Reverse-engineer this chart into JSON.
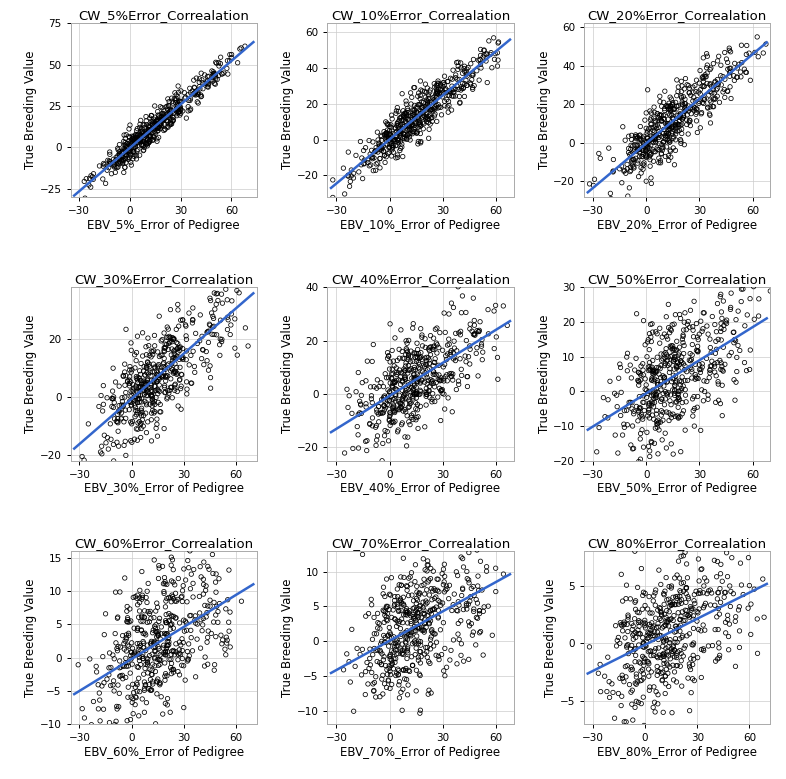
{
  "panels": [
    {
      "title": "CW_5%Error_Correalation",
      "xlabel": "EBV_5%_Error of Pedigree",
      "ylim": [
        -30,
        75
      ],
      "xlim": [
        -35,
        75
      ],
      "slope": 0.88,
      "noise": 5.0,
      "yticks": [
        -25,
        0,
        25,
        50,
        75
      ],
      "xticks": [
        -30,
        0,
        30,
        60
      ]
    },
    {
      "title": "CW_10%Error_Correalation",
      "xlabel": "EBV_10%_Error of Pedigree",
      "ylim": [
        -32,
        65
      ],
      "xlim": [
        -35,
        70
      ],
      "slope": 0.82,
      "noise": 6.5,
      "yticks": [
        -20,
        0,
        20,
        40,
        60
      ],
      "xticks": [
        -30,
        0,
        30,
        60
      ]
    },
    {
      "title": "CW_20%Error_Correalation",
      "xlabel": "EBV_20%_Error of Pedigree",
      "ylim": [
        -28,
        62
      ],
      "xlim": [
        -35,
        70
      ],
      "slope": 0.78,
      "noise": 8.0,
      "yticks": [
        -20,
        0,
        20,
        40,
        60
      ],
      "xticks": [
        -30,
        0,
        30,
        60
      ]
    },
    {
      "title": "CW_30%Error_Correalation",
      "xlabel": "EBV_30%_Error of Pedigree",
      "ylim": [
        -22,
        38
      ],
      "xlim": [
        -35,
        72
      ],
      "slope": 0.5,
      "noise": 8.5,
      "yticks": [
        -20,
        0,
        20
      ],
      "xticks": [
        -30,
        0,
        30,
        60
      ]
    },
    {
      "title": "CW_40%Error_Correalation",
      "xlabel": "EBV_40%_Error of Pedigree",
      "ylim": [
        -25,
        40
      ],
      "xlim": [
        -35,
        70
      ],
      "slope": 0.4,
      "noise": 9.0,
      "yticks": [
        -20,
        0,
        20,
        40
      ],
      "xticks": [
        -30,
        0,
        30,
        60
      ]
    },
    {
      "title": "CW_50%Error_Correalation",
      "xlabel": "EBV_50%_Error of Pedigree",
      "ylim": [
        -20,
        30
      ],
      "xlim": [
        -35,
        70
      ],
      "slope": 0.3,
      "noise": 8.5,
      "yticks": [
        -20,
        -10,
        0,
        10,
        20,
        30
      ],
      "xticks": [
        -30,
        0,
        30,
        60
      ]
    },
    {
      "title": "CW_60%Error_Correalation",
      "xlabel": "EBV_60%_Error of Pedigree",
      "ylim": [
        -10,
        16
      ],
      "xlim": [
        -35,
        72
      ],
      "slope": 0.17,
      "noise": 5.0,
      "yticks": [
        -10,
        -5,
        0,
        5,
        10,
        15
      ],
      "xticks": [
        -30,
        0,
        30,
        60
      ]
    },
    {
      "title": "CW_70%Error_Correalation",
      "xlabel": "EBV_70%_Error of Pedigree",
      "ylim": [
        -12,
        13
      ],
      "xlim": [
        -35,
        70
      ],
      "slope": 0.13,
      "noise": 4.5,
      "yticks": [
        -10,
        -5,
        0,
        5,
        10
      ],
      "xticks": [
        -30,
        0,
        30,
        60
      ]
    },
    {
      "title": "CW_80%Error_Correalation",
      "xlabel": "EBV_80%_Error of Pedigree",
      "ylim": [
        -7,
        8
      ],
      "xlim": [
        -35,
        72
      ],
      "slope": 0.07,
      "noise": 3.0,
      "yticks": [
        -5,
        0,
        5
      ],
      "xticks": [
        -30,
        0,
        30,
        60
      ]
    }
  ],
  "ylabel": "True Breeding Value",
  "line_color": "#3366CC",
  "marker_color": "black",
  "bg_color": "#ffffff",
  "grid_color": "#cccccc",
  "title_fontsize": 9.5,
  "label_fontsize": 8.5,
  "tick_fontsize": 7.5,
  "n_points": 500
}
